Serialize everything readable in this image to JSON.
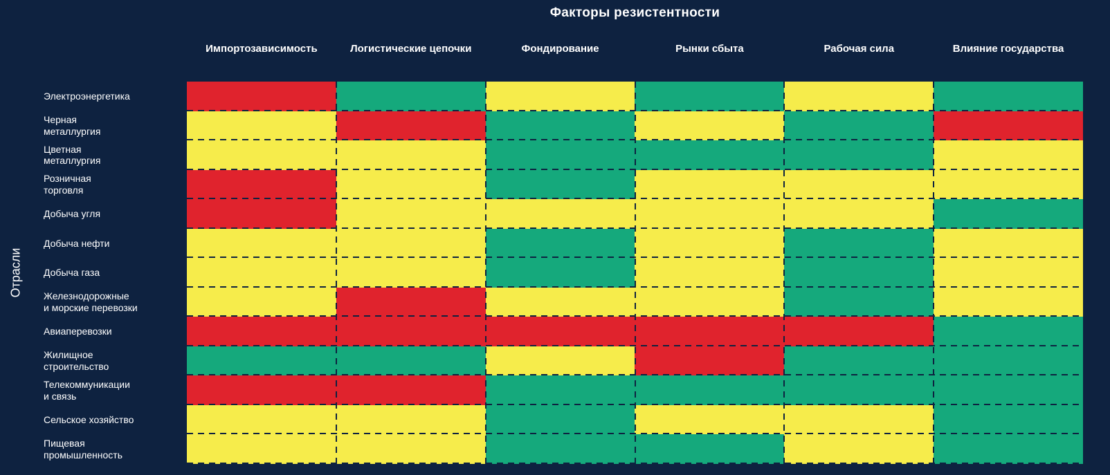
{
  "title": "Факторы резистентности",
  "y_axis_label": "Отрасли",
  "colors": {
    "background": "#0e2240",
    "text": "#ffffff",
    "red": "#e0232d",
    "yellow": "#f6ec4b",
    "green": "#15a97c"
  },
  "chart_data": {
    "type": "heatmap",
    "title": "Факторы резистентности",
    "xlabel": "",
    "ylabel": "Отрасли",
    "legend": "none",
    "columns": [
      "Импортозависимость",
      "Логистические цепочки",
      "Фондирование",
      "Рынки сбыта",
      "Рабочая сила",
      "Влияние государства"
    ],
    "rows": [
      "Электроэнергетика",
      "Черная\nметаллургия",
      "Цветная\nметаллургия",
      "Розничная\nторговля",
      "Добыча угля",
      "Добыча нефти",
      "Добыча газа",
      "Железнодорожные\nи морские перевозки",
      "Авиаперевозки",
      "Жилищное\nстроительство",
      "Телекоммуникации\nи связь",
      "Сельское хозяйство",
      "Пищевая\nпромышленность"
    ],
    "palette": {
      "red": "#e0232d",
      "yellow": "#f6ec4b",
      "green": "#15a97c"
    },
    "values": [
      [
        "red",
        "green",
        "yellow",
        "green",
        "yellow",
        "green"
      ],
      [
        "yellow",
        "red",
        "green",
        "yellow",
        "green",
        "red"
      ],
      [
        "yellow",
        "yellow",
        "green",
        "green",
        "green",
        "yellow"
      ],
      [
        "red",
        "yellow",
        "green",
        "yellow",
        "yellow",
        "yellow"
      ],
      [
        "red",
        "yellow",
        "yellow",
        "yellow",
        "yellow",
        "green"
      ],
      [
        "yellow",
        "yellow",
        "green",
        "yellow",
        "green",
        "yellow"
      ],
      [
        "yellow",
        "yellow",
        "green",
        "yellow",
        "green",
        "yellow"
      ],
      [
        "yellow",
        "red",
        "yellow",
        "yellow",
        "green",
        "yellow"
      ],
      [
        "red",
        "red",
        "red",
        "red",
        "red",
        "green"
      ],
      [
        "green",
        "green",
        "yellow",
        "red",
        "green",
        "green"
      ],
      [
        "red",
        "red",
        "green",
        "green",
        "green",
        "green"
      ],
      [
        "yellow",
        "yellow",
        "green",
        "yellow",
        "yellow",
        "green"
      ],
      [
        "yellow",
        "yellow",
        "green",
        "green",
        "yellow",
        "green"
      ]
    ]
  }
}
